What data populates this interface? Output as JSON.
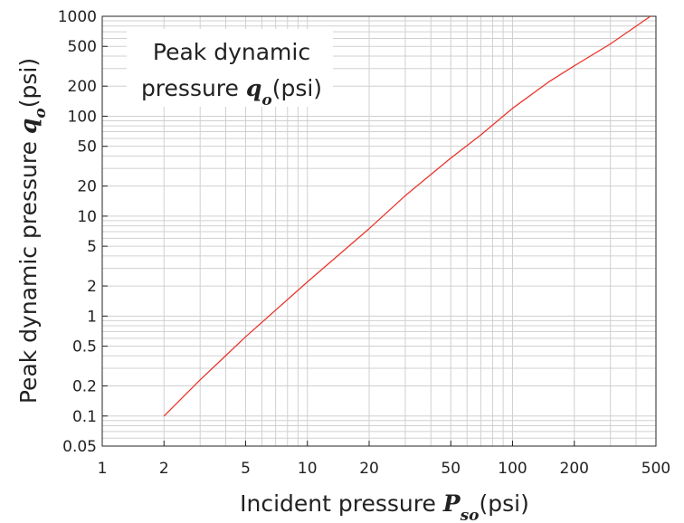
{
  "chart_data": {
    "type": "line",
    "xscale": "log",
    "yscale": "log",
    "xlim": [
      1,
      500
    ],
    "ylim": [
      0.05,
      1000
    ],
    "grid": true,
    "xticks": [
      1,
      2,
      5,
      10,
      20,
      50,
      100,
      200,
      500
    ],
    "xtick_labels": [
      "1",
      "2",
      "5",
      "10",
      "20",
      "50",
      "100",
      "200",
      "500"
    ],
    "yticks": [
      0.05,
      0.1,
      0.2,
      0.5,
      1,
      2,
      5,
      10,
      20,
      50,
      100,
      200,
      500,
      1000
    ],
    "ytick_labels": [
      "0.05",
      "0.1",
      "0.2",
      "0.5",
      "1",
      "2",
      "5",
      "10",
      "20",
      "50",
      "100",
      "200",
      "500",
      "1000"
    ],
    "xlabel": {
      "text": "Incident pressure ",
      "symbol": "P",
      "subscript": "so",
      "unit": "(psi)"
    },
    "ylabel": {
      "text": "Peak dynamic pressure ",
      "symbol": "q",
      "subscript": "o",
      "unit": "(psi)"
    },
    "legend_placement": "top-left",
    "series": [
      {
        "legend_lines": [
          "Peak dynamic",
          "pressure "
        ],
        "legend_symbol": "q",
        "legend_subscript": "o",
        "legend_unit": "(psi)",
        "color": "#e8352b",
        "x": [
          2,
          3,
          5,
          10,
          20,
          30,
          50,
          70,
          100,
          150,
          200,
          300,
          470
        ],
        "y": [
          0.1,
          0.23,
          0.62,
          2.2,
          7.5,
          16,
          38,
          65,
          120,
          220,
          320,
          530,
          1000
        ]
      }
    ]
  }
}
